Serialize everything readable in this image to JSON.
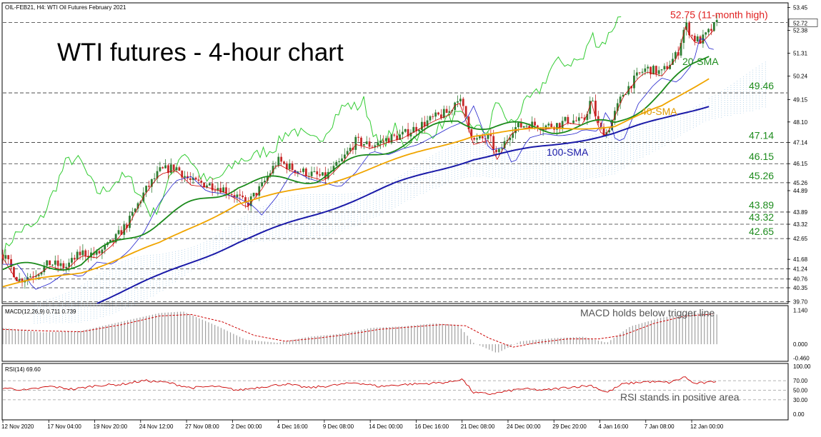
{
  "header": {
    "symbol_info": "OIL-FEB21, H4:  WTI Oil Futures February 2021",
    "title": "WTI futures - 4-hour chart"
  },
  "colors": {
    "bull_candle": "#2e7d32",
    "bear_candle": "#c62828",
    "sma20": "#1b8a1b",
    "sma40": "#f0a500",
    "sma100": "#1a1aa8",
    "lagging_span": "#33cc33",
    "tenkan": "#cc0000",
    "kijun": "#2222cc",
    "cloud": "#7fb4d9",
    "level_line": "#333333",
    "annotation_red": "#e02020",
    "annotation_green": "#1e8c1e",
    "annotation_orange": "#e09a00",
    "annotation_blue": "#1a1aa8",
    "macd_hist": "#a0a0a0",
    "macd_signal": "#cc0000",
    "rsi_line": "#cc0000"
  },
  "chart_data": [
    {
      "panel": "price",
      "type": "candlestick",
      "title": "WTI futures - 4-hour chart",
      "price_axis": {
        "ticks": [
          53.45,
          52.38,
          51.31,
          50.24,
          49.15,
          48.1,
          47.14,
          46.15,
          45.26,
          44.89,
          43.89,
          43.32,
          42.65,
          41.68,
          41.24,
          40.76,
          40.35,
          39.7
        ],
        "ylim": [
          39.65,
          53.6
        ],
        "current_price": 52.72
      },
      "x_axis": {
        "labels": [
          "12 Nov 2020",
          "17 Nov 04:00",
          "19 Nov 20:00",
          "24 Nov 12:00",
          "27 Nov 08:00",
          "2 Dec 00:00",
          "4 Dec 16:00",
          "9 Dec 08:00",
          "14 Dec 00:00",
          "16 Dec 16:00",
          "21 Dec 08:00",
          "24 Dec 00:00",
          "29 Dec 20:00",
          "4 Jan 16:00",
          "7 Jan 08:00",
          "12 Jan 00:00"
        ]
      },
      "levels": [
        {
          "value": 52.75,
          "label": "52.75 (11-month high)"
        },
        {
          "value": 49.46,
          "label": "49.46"
        },
        {
          "value": 47.14,
          "label": "47.14"
        },
        {
          "value": 46.15,
          "label": "46.15"
        },
        {
          "value": 45.26,
          "label": "45.26"
        },
        {
          "value": 43.89,
          "label": "43.89"
        },
        {
          "value": 43.32,
          "label": "43.32"
        },
        {
          "value": 42.65,
          "label": "42.65"
        },
        {
          "value": 41.24,
          "label": ""
        },
        {
          "value": 40.76,
          "label": ""
        },
        {
          "value": 40.35,
          "label": ""
        },
        {
          "value": 39.7,
          "label": ""
        }
      ],
      "price_path": [
        {
          "t": 0,
          "v": 41.9
        },
        {
          "t": 0.02,
          "v": 40.7
        },
        {
          "t": 0.04,
          "v": 41.0
        },
        {
          "t": 0.06,
          "v": 41.5
        },
        {
          "t": 0.08,
          "v": 41.3
        },
        {
          "t": 0.1,
          "v": 42.0
        },
        {
          "t": 0.12,
          "v": 41.9
        },
        {
          "t": 0.14,
          "v": 42.5
        },
        {
          "t": 0.16,
          "v": 43.4
        },
        {
          "t": 0.18,
          "v": 44.8
        },
        {
          "t": 0.2,
          "v": 45.8
        },
        {
          "t": 0.22,
          "v": 46.0
        },
        {
          "t": 0.24,
          "v": 45.3
        },
        {
          "t": 0.26,
          "v": 45.2
        },
        {
          "t": 0.28,
          "v": 45.0
        },
        {
          "t": 0.3,
          "v": 44.6
        },
        {
          "t": 0.31,
          "v": 44.2
        },
        {
          "t": 0.33,
          "v": 45.1
        },
        {
          "t": 0.35,
          "v": 46.3
        },
        {
          "t": 0.37,
          "v": 45.9
        },
        {
          "t": 0.39,
          "v": 45.7
        },
        {
          "t": 0.41,
          "v": 45.5
        },
        {
          "t": 0.43,
          "v": 46.2
        },
        {
          "t": 0.45,
          "v": 47.2
        },
        {
          "t": 0.47,
          "v": 47.0
        },
        {
          "t": 0.49,
          "v": 47.3
        },
        {
          "t": 0.51,
          "v": 47.5
        },
        {
          "t": 0.53,
          "v": 47.9
        },
        {
          "t": 0.55,
          "v": 48.3
        },
        {
          "t": 0.57,
          "v": 48.6
        },
        {
          "t": 0.58,
          "v": 49.3
        },
        {
          "t": 0.59,
          "v": 48.4
        },
        {
          "t": 0.6,
          "v": 47.2
        },
        {
          "t": 0.62,
          "v": 47.4
        },
        {
          "t": 0.63,
          "v": 46.5
        },
        {
          "t": 0.65,
          "v": 47.8
        },
        {
          "t": 0.67,
          "v": 48.0
        },
        {
          "t": 0.69,
          "v": 47.9
        },
        {
          "t": 0.71,
          "v": 48.0
        },
        {
          "t": 0.72,
          "v": 48.2
        },
        {
          "t": 0.74,
          "v": 48.1
        },
        {
          "t": 0.75,
          "v": 49.2
        },
        {
          "t": 0.76,
          "v": 47.8
        },
        {
          "t": 0.77,
          "v": 47.6
        },
        {
          "t": 0.79,
          "v": 49.4
        },
        {
          "t": 0.81,
          "v": 50.3
        },
        {
          "t": 0.82,
          "v": 50.6
        },
        {
          "t": 0.84,
          "v": 50.4
        },
        {
          "t": 0.86,
          "v": 51.3
        },
        {
          "t": 0.87,
          "v": 52.7
        },
        {
          "t": 0.88,
          "v": 52.0
        },
        {
          "t": 0.89,
          "v": 51.9
        },
        {
          "t": 0.9,
          "v": 52.3
        },
        {
          "t": 0.91,
          "v": 52.7
        }
      ],
      "series": [
        {
          "name": "20-SMA",
          "points": [
            [
              0,
              41.2
            ],
            [
              0.1,
              41.5
            ],
            [
              0.2,
              43.5
            ],
            [
              0.3,
              45.2
            ],
            [
              0.4,
              45.5
            ],
            [
              0.5,
              47.0
            ],
            [
              0.58,
              48.2
            ],
            [
              0.62,
              47.9
            ],
            [
              0.7,
              47.8
            ],
            [
              0.78,
              48.0
            ],
            [
              0.84,
              49.5
            ],
            [
              0.9,
              51.3
            ]
          ]
        },
        {
          "name": "40-SMA",
          "points": [
            [
              0,
              40.4
            ],
            [
              0.1,
              41.1
            ],
            [
              0.2,
              42.4
            ],
            [
              0.3,
              44.3
            ],
            [
              0.4,
              45.1
            ],
            [
              0.5,
              46.3
            ],
            [
              0.6,
              47.5
            ],
            [
              0.7,
              47.8
            ],
            [
              0.78,
              47.9
            ],
            [
              0.84,
              48.8
            ],
            [
              0.9,
              50.2
            ]
          ]
        },
        {
          "name": "100-SMA",
          "points": [
            [
              0.12,
              39.7
            ],
            [
              0.2,
              40.9
            ],
            [
              0.3,
              42.5
            ],
            [
              0.4,
              43.8
            ],
            [
              0.5,
              45.2
            ],
            [
              0.6,
              46.4
            ],
            [
              0.7,
              47.0
            ],
            [
              0.78,
              47.6
            ],
            [
              0.84,
              48.2
            ],
            [
              0.9,
              48.9
            ]
          ]
        }
      ],
      "annotations": [
        {
          "text": "20-SMA"
        },
        {
          "text": "40-SMA"
        },
        {
          "text": "100-SMA"
        }
      ]
    },
    {
      "panel": "macd",
      "type": "bar",
      "title": "MACD(12,26,9) 0.711 0.739",
      "annotation": "MACD holds below trigger line",
      "yticks": [
        1.14,
        0.0,
        -0.46
      ],
      "ylim": [
        -0.55,
        1.25
      ],
      "histogram": [
        {
          "t": 0,
          "v": 0.55
        },
        {
          "t": 0.05,
          "v": 0.4
        },
        {
          "t": 0.1,
          "v": 0.45
        },
        {
          "t": 0.15,
          "v": 0.75
        },
        {
          "t": 0.2,
          "v": 1.05
        },
        {
          "t": 0.23,
          "v": 1.1
        },
        {
          "t": 0.27,
          "v": 0.65
        },
        {
          "t": 0.31,
          "v": 0.15
        },
        {
          "t": 0.35,
          "v": 0.05
        },
        {
          "t": 0.39,
          "v": 0.25
        },
        {
          "t": 0.43,
          "v": 0.35
        },
        {
          "t": 0.47,
          "v": 0.55
        },
        {
          "t": 0.51,
          "v": 0.6
        },
        {
          "t": 0.55,
          "v": 0.7
        },
        {
          "t": 0.58,
          "v": 0.65
        },
        {
          "t": 0.6,
          "v": 0.05
        },
        {
          "t": 0.63,
          "v": -0.3
        },
        {
          "t": 0.66,
          "v": 0.1
        },
        {
          "t": 0.7,
          "v": 0.2
        },
        {
          "t": 0.74,
          "v": 0.25
        },
        {
          "t": 0.77,
          "v": 0.05
        },
        {
          "t": 0.8,
          "v": 0.6
        },
        {
          "t": 0.84,
          "v": 0.9
        },
        {
          "t": 0.88,
          "v": 1.05
        },
        {
          "t": 0.91,
          "v": 1.0
        }
      ],
      "signal": [
        {
          "t": 0,
          "v": 0.5
        },
        {
          "t": 0.05,
          "v": 0.45
        },
        {
          "t": 0.1,
          "v": 0.42
        },
        {
          "t": 0.15,
          "v": 0.65
        },
        {
          "t": 0.2,
          "v": 0.95
        },
        {
          "t": 0.24,
          "v": 1.0
        },
        {
          "t": 0.28,
          "v": 0.75
        },
        {
          "t": 0.32,
          "v": 0.3
        },
        {
          "t": 0.36,
          "v": 0.1
        },
        {
          "t": 0.4,
          "v": 0.2
        },
        {
          "t": 0.44,
          "v": 0.33
        },
        {
          "t": 0.48,
          "v": 0.5
        },
        {
          "t": 0.52,
          "v": 0.58
        },
        {
          "t": 0.56,
          "v": 0.66
        },
        {
          "t": 0.59,
          "v": 0.62
        },
        {
          "t": 0.62,
          "v": 0.2
        },
        {
          "t": 0.65,
          "v": -0.1
        },
        {
          "t": 0.68,
          "v": 0.05
        },
        {
          "t": 0.72,
          "v": 0.18
        },
        {
          "t": 0.76,
          "v": 0.18
        },
        {
          "t": 0.79,
          "v": 0.3
        },
        {
          "t": 0.83,
          "v": 0.7
        },
        {
          "t": 0.87,
          "v": 0.95
        },
        {
          "t": 0.91,
          "v": 1.02
        }
      ]
    },
    {
      "panel": "rsi",
      "type": "line",
      "title": "RSI(14) 69.60",
      "annotation": "RSI stands in positive area",
      "yticks": [
        100.0,
        70.0,
        50.0,
        30.0,
        0.0
      ],
      "ylim": [
        0,
        100
      ],
      "values": [
        {
          "t": 0,
          "v": 55
        },
        {
          "t": 0.03,
          "v": 50
        },
        {
          "t": 0.06,
          "v": 58
        },
        {
          "t": 0.09,
          "v": 52
        },
        {
          "t": 0.12,
          "v": 60
        },
        {
          "t": 0.15,
          "v": 62
        },
        {
          "t": 0.18,
          "v": 70
        },
        {
          "t": 0.21,
          "v": 66
        },
        {
          "t": 0.24,
          "v": 55
        },
        {
          "t": 0.27,
          "v": 58
        },
        {
          "t": 0.3,
          "v": 50
        },
        {
          "t": 0.33,
          "v": 57
        },
        {
          "t": 0.36,
          "v": 63
        },
        {
          "t": 0.39,
          "v": 55
        },
        {
          "t": 0.42,
          "v": 60
        },
        {
          "t": 0.45,
          "v": 66
        },
        {
          "t": 0.48,
          "v": 58
        },
        {
          "t": 0.51,
          "v": 62
        },
        {
          "t": 0.54,
          "v": 64
        },
        {
          "t": 0.57,
          "v": 67
        },
        {
          "t": 0.585,
          "v": 74
        },
        {
          "t": 0.6,
          "v": 45
        },
        {
          "t": 0.62,
          "v": 42
        },
        {
          "t": 0.64,
          "v": 47
        },
        {
          "t": 0.66,
          "v": 53
        },
        {
          "t": 0.69,
          "v": 50
        },
        {
          "t": 0.72,
          "v": 56
        },
        {
          "t": 0.75,
          "v": 60
        },
        {
          "t": 0.77,
          "v": 45
        },
        {
          "t": 0.79,
          "v": 63
        },
        {
          "t": 0.82,
          "v": 68
        },
        {
          "t": 0.85,
          "v": 66
        },
        {
          "t": 0.87,
          "v": 78
        },
        {
          "t": 0.88,
          "v": 64
        },
        {
          "t": 0.9,
          "v": 66
        },
        {
          "t": 0.91,
          "v": 69.6
        }
      ]
    }
  ]
}
